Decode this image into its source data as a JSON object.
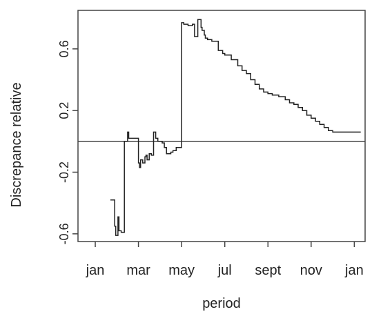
{
  "chart_data": {
    "type": "line",
    "title": "",
    "xlabel": "period",
    "ylabel": "Discrepance relative",
    "ylim": [
      -0.65,
      0.85
    ],
    "y_ticks": [
      -0.6,
      -0.2,
      0.2,
      0.6
    ],
    "y_tick_labels": [
      "-0.6",
      "-0.2",
      "0.2",
      "0.6"
    ],
    "x_ticks": [
      1,
      3,
      5,
      7,
      9,
      11,
      13
    ],
    "x_tick_labels": [
      "jan",
      "mar",
      "may",
      "jul",
      "sept",
      "nov",
      "jan"
    ],
    "xlim": [
      0.2,
      13.5
    ],
    "reference_line": 0,
    "grid": false,
    "legend": "none",
    "colors": {
      "line": "#222222",
      "frame": "#444444",
      "reference": "#444444"
    },
    "series": [
      {
        "step": true,
        "x": [
          1.7,
          1.9,
          1.95,
          2.05,
          2.1,
          2.2,
          2.35,
          2.5,
          2.55,
          2.6,
          2.65,
          2.7,
          2.75,
          2.8,
          2.9,
          3.0,
          3.05,
          3.1,
          3.2,
          3.3,
          3.35,
          3.4,
          3.5,
          3.6,
          3.7,
          3.8,
          3.9,
          4.0,
          4.1,
          4.2,
          4.3,
          4.4,
          4.5,
          4.6,
          4.75,
          5.0,
          5.1,
          5.3,
          5.5,
          5.6,
          5.75,
          5.8,
          5.9,
          5.95,
          6.05,
          6.1,
          6.2,
          6.3,
          6.4,
          6.5,
          6.7,
          6.9,
          7.0,
          7.3,
          7.6,
          7.8,
          8.0,
          8.2,
          8.4,
          8.6,
          8.8,
          9.0,
          9.2,
          9.5,
          9.8,
          10.0,
          10.2,
          10.4,
          10.6,
          10.8,
          11.0,
          11.2,
          11.4,
          11.6,
          11.8,
          12.0,
          12.2,
          12.4,
          12.6,
          12.8,
          13.0,
          13.3
        ],
        "y": [
          -0.38,
          -0.55,
          -0.61,
          -0.49,
          -0.58,
          -0.59,
          -0.0,
          0.06,
          0.02,
          0.02,
          0.02,
          0.02,
          0.02,
          0.02,
          0.02,
          -0.14,
          -0.17,
          -0.12,
          -0.14,
          -0.1,
          -0.09,
          -0.12,
          -0.08,
          -0.09,
          0.06,
          0.02,
          0.0,
          0.0,
          -0.01,
          -0.04,
          -0.08,
          -0.08,
          -0.07,
          -0.06,
          -0.04,
          0.77,
          0.76,
          0.75,
          0.76,
          0.68,
          0.79,
          0.79,
          0.74,
          0.72,
          0.69,
          0.67,
          0.66,
          0.66,
          0.65,
          0.65,
          0.59,
          0.57,
          0.56,
          0.53,
          0.49,
          0.46,
          0.44,
          0.4,
          0.37,
          0.34,
          0.32,
          0.31,
          0.3,
          0.29,
          0.27,
          0.25,
          0.24,
          0.22,
          0.2,
          0.17,
          0.15,
          0.13,
          0.11,
          0.09,
          0.07,
          0.06,
          0.06,
          0.06,
          0.06,
          0.06,
          0.06,
          0.06
        ]
      }
    ]
  }
}
